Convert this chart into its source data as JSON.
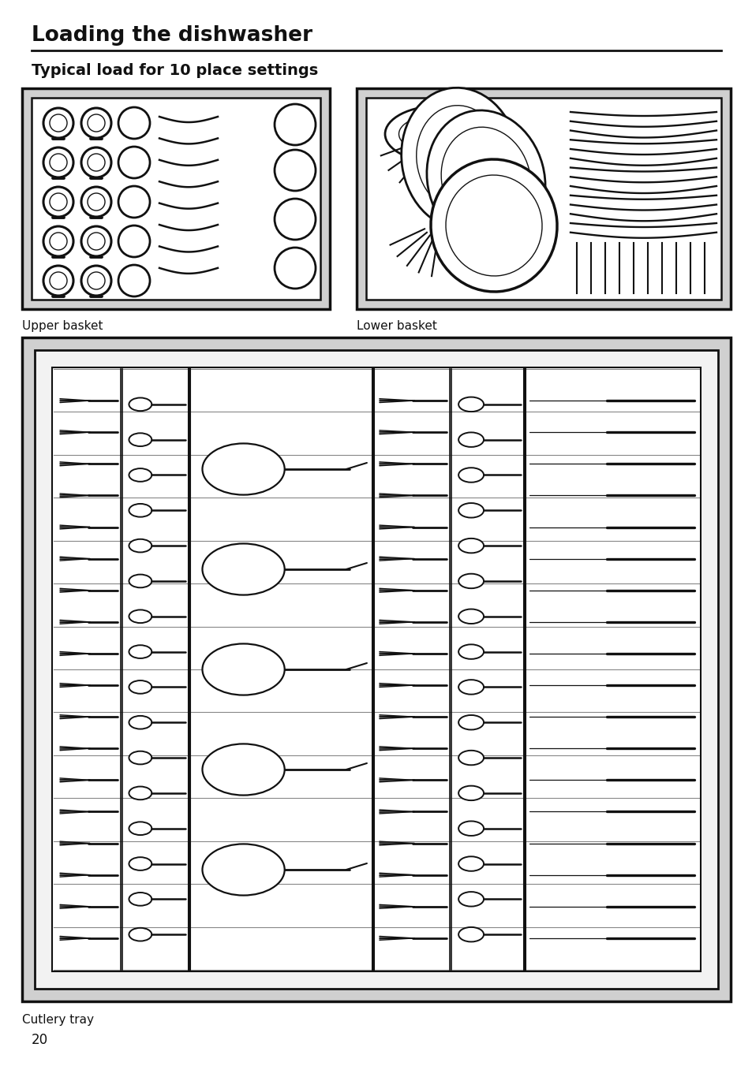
{
  "title": "Loading the dishwasher",
  "subtitle": "Typical load for 10 place settings",
  "label_upper": "Upper basket",
  "label_lower": "Lower basket",
  "label_cutlery": "Cutlery tray",
  "page_number": "20",
  "bg_color": "#ffffff",
  "box_bg": "#d0d0d0",
  "inner_bg": "#f2f2f2",
  "line_color": "#111111",
  "title_fontsize": 19,
  "subtitle_fontsize": 14,
  "label_fontsize": 11
}
